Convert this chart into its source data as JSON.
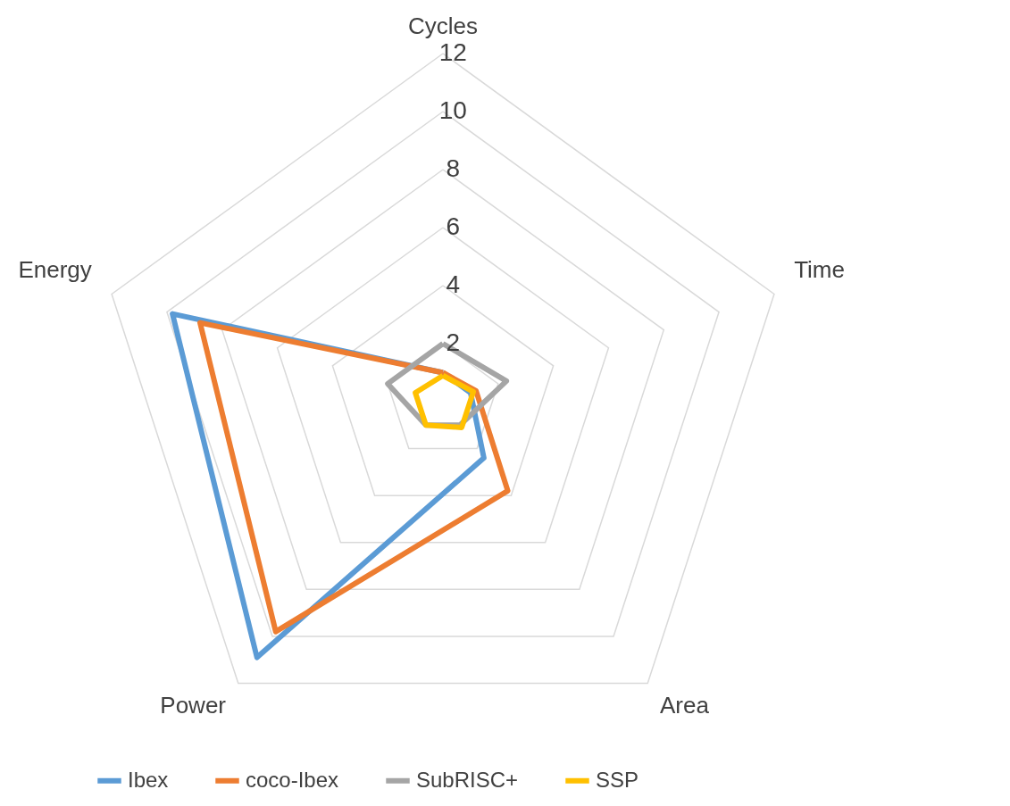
{
  "chart_data": {
    "type": "radar",
    "categories": [
      "Cycles",
      "Time",
      "Area",
      "Power",
      "Energy"
    ],
    "series": [
      {
        "name": "Ibex",
        "color": "#5b9bd5",
        "values": [
          1,
          1,
          2.4,
          10.9,
          9.8
        ]
      },
      {
        "name": "coco-Ibex",
        "color": "#ed7d31",
        "values": [
          1,
          1.2,
          3.8,
          9.8,
          8.8
        ]
      },
      {
        "name": "SubRISC+",
        "color": "#a5a5a5",
        "values": [
          2,
          2.3,
          1,
          1,
          2
        ]
      },
      {
        "name": "SSP",
        "color": "#ffc000",
        "values": [
          0.9,
          1.1,
          1.1,
          1,
          1
        ]
      }
    ],
    "ylim": [
      0,
      12
    ],
    "yticks": [
      2,
      4,
      6,
      8,
      10,
      12
    ],
    "grid": true,
    "legend": "bottom",
    "marker": "none",
    "line_style": "solid"
  }
}
